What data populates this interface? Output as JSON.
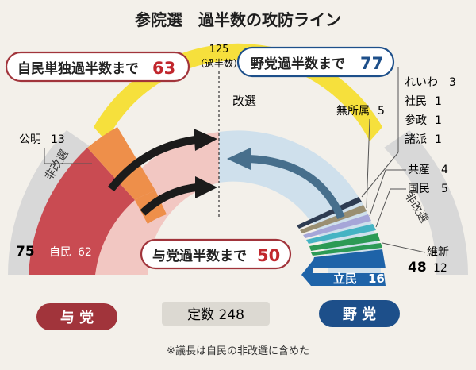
{
  "title": "参院選　過半数の攻防ライン",
  "line125": {
    "value": "125",
    "sub": "（過半数）"
  },
  "kaisen_label": "改選",
  "hikaisen_label": "非改選",
  "callouts": {
    "jimin_tandoku": {
      "text": "自民単独過半数まで",
      "num": "63"
    },
    "yatou": {
      "text": "野党過半数まで",
      "num": "77"
    },
    "yotou": {
      "text": "与党過半数まで",
      "num": "50"
    }
  },
  "ruling": {
    "komei": {
      "name": "公明",
      "num": "13"
    },
    "jimin": {
      "name": "自民",
      "num": "62"
    },
    "total": "75",
    "label": "与 党"
  },
  "opposition": {
    "reiwa": {
      "name": "れいわ",
      "num": "3"
    },
    "shamin": {
      "name": "社民",
      "num": "1"
    },
    "sansei": {
      "name": "参政",
      "num": "1"
    },
    "shoha": {
      "name": "諸派",
      "num": "1"
    },
    "mushozoku": {
      "name": "無所属",
      "num": "5"
    },
    "kyosan": {
      "name": "共産",
      "num": "4"
    },
    "kokumin": {
      "name": "国民",
      "num": "5"
    },
    "ishin": {
      "name": "維新",
      "num": "12"
    },
    "rikken": {
      "name": "立民",
      "num": "16"
    },
    "total": "48",
    "label": "野 党"
  },
  "teisu": "定数 248",
  "note": "※議長は自民の非改選に含めた",
  "colors": {
    "jimin": "#c94b52",
    "komei": "#ee8f4a",
    "ruling_bg": "#f2c7c2",
    "opp_bg": "#cfe0ec",
    "kaisen_band": "#f6e03c",
    "hikaisen_band": "#d8d8d8",
    "rikken": "#1e63a8",
    "ishin": "#2c9a55",
    "kokumin": "#45b3c3",
    "kyosan": "#a6a6d8",
    "mushozoku": "#9a8f72",
    "minor": "#2e3c52",
    "ruling_label": "#a1343b",
    "opp_label": "#1d4f8a",
    "arrow_dark": "#1b1b1b",
    "arrow_opp": "#476f8c"
  }
}
